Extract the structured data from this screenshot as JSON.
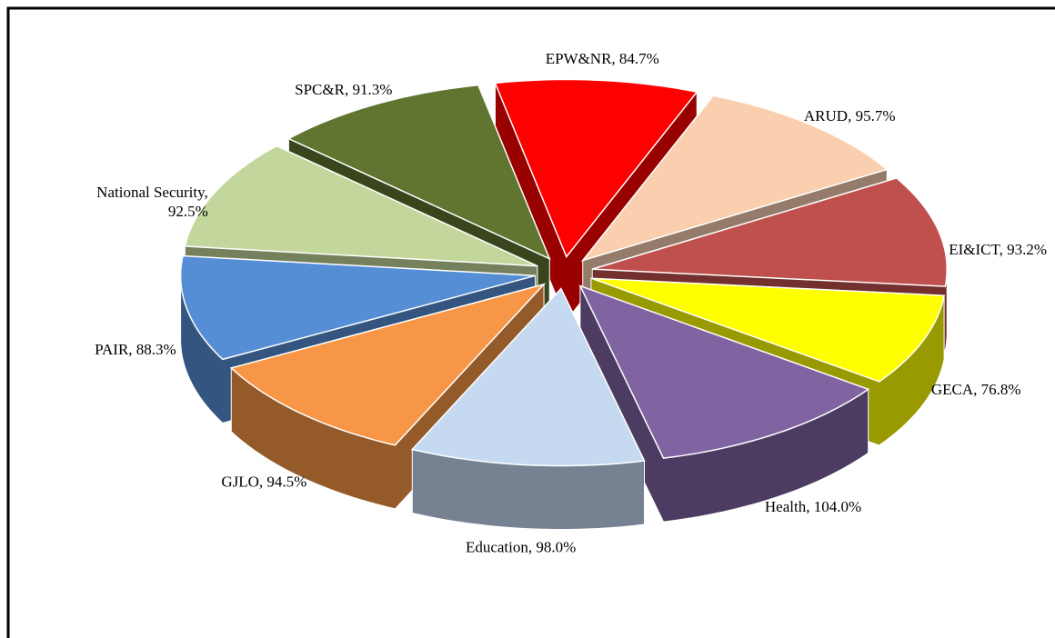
{
  "chart_data": {
    "type": "pie3d",
    "value_labels": [
      "EPW&NR, 84.7%",
      "ARUD, 95.7%",
      "EI&ICT, 93.2%",
      "GECA, 76.8%",
      "Health, 104.0%",
      "Education, 98.0%",
      "GJLO, 94.5%",
      "PAIR, 88.3%",
      "National Security,\n92.5%",
      "SPC&R, 91.3%"
    ],
    "values": [
      84.7,
      95.7,
      93.2,
      76.8,
      104.0,
      98.0,
      94.5,
      88.3,
      92.5,
      91.3
    ],
    "colors": [
      "#ff0000",
      "#f9cfb0",
      "#c0504d",
      "#ffff00",
      "#8064a2",
      "#c5d9f1",
      "#f79646",
      "#558ed5",
      "#c3d69b",
      "#5f7530"
    ]
  }
}
